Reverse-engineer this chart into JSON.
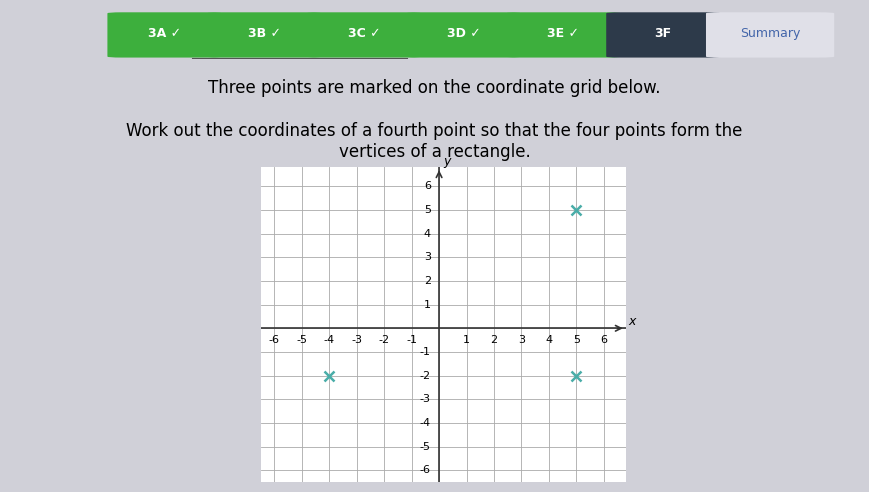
{
  "title_text": "Three points are marked on the coordinate grid below.",
  "subtitle_text": "Work out the coordinates of a fourth point so that the four points form the\nvertices of a rectangle.",
  "background_color": "#d0d0d8",
  "tab_labels": [
    "3A",
    "3B",
    "3C",
    "3D",
    "3E",
    "3F",
    "Summary"
  ],
  "tab_checks": [
    true,
    true,
    true,
    true,
    true,
    false,
    false
  ],
  "tab_active": "3F",
  "points": [
    [
      -4,
      -2
    ],
    [
      5,
      5
    ],
    [
      5,
      -2
    ]
  ],
  "point_color": "#4aada8",
  "grid_color": "#aaaaaa",
  "axis_color": "#333333",
  "xlim": [
    -6.5,
    6.8
  ],
  "ylim": [
    -6.5,
    6.8
  ],
  "xticks": [
    -6,
    -5,
    -4,
    -3,
    -2,
    -1,
    0,
    1,
    2,
    3,
    4,
    5,
    6
  ],
  "yticks": [
    -6,
    -5,
    -4,
    -3,
    -2,
    -1,
    0,
    1,
    2,
    3,
    4,
    5,
    6
  ],
  "tick_fontsize": 8,
  "xlabel": "x",
  "ylabel": "y",
  "tab_green": "#3daf3d",
  "tab_dark": "#2d3a4a",
  "tab_summary_bg": "#e0e0e8",
  "tab_summary_text": "#4466aa",
  "underline_color": "#555555"
}
